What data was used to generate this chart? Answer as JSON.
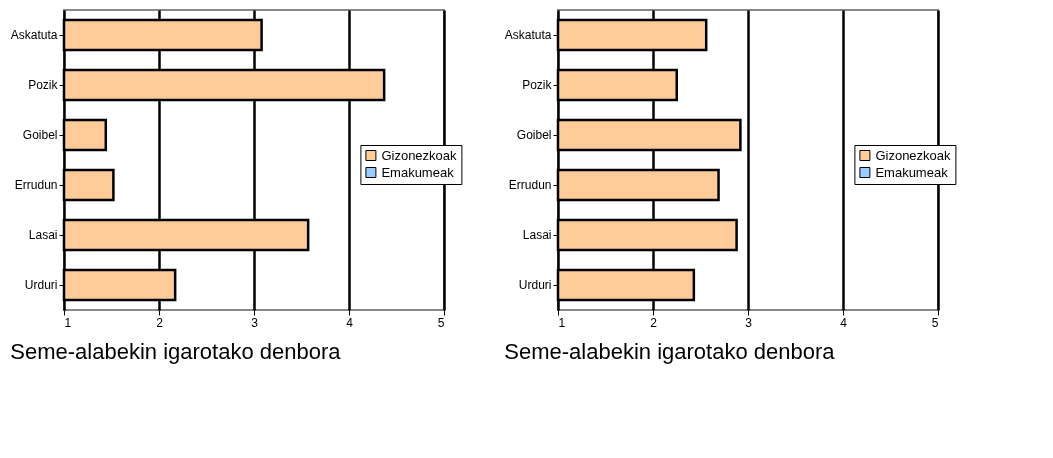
{
  "chart_data": [
    {
      "type": "bar",
      "orientation": "horizontal",
      "title": "Seme-alabekin igarotako denbora",
      "categories": [
        "Askatuta",
        "Pozik",
        "Goibel",
        "Errudun",
        "Lasai",
        "Urduri"
      ],
      "series": [
        {
          "name": "Gizonezkoak",
          "color": "#ffcc99",
          "values": [
            3.08,
            4.37,
            1.44,
            1.52,
            3.57,
            2.17
          ]
        },
        {
          "name": "Emakumeak",
          "color": "#99ccff",
          "values": [
            null,
            null,
            null,
            null,
            null,
            null
          ]
        }
      ],
      "xlim": [
        1,
        5
      ],
      "xticks": [
        1,
        2,
        3,
        4,
        5
      ],
      "grid": "x",
      "legend": "right"
    },
    {
      "type": "bar",
      "orientation": "horizontal",
      "title": "Seme-alabekin igarotako denbora",
      "categories": [
        "Askatuta",
        "Pozik",
        "Goibel",
        "Errudun",
        "Lasai",
        "Urduri"
      ],
      "series": [
        {
          "name": "Gizonezkoak",
          "color": "#ffcc99",
          "values": [
            2.56,
            2.25,
            2.92,
            2.69,
            2.88,
            2.43
          ]
        },
        {
          "name": "Emakumeak",
          "color": "#99ccff",
          "values": [
            null,
            null,
            null,
            null,
            null,
            null
          ]
        }
      ],
      "xlim": [
        1,
        5
      ],
      "xticks": [
        1,
        2,
        3,
        4,
        5
      ],
      "grid": "x",
      "legend": "right"
    }
  ]
}
